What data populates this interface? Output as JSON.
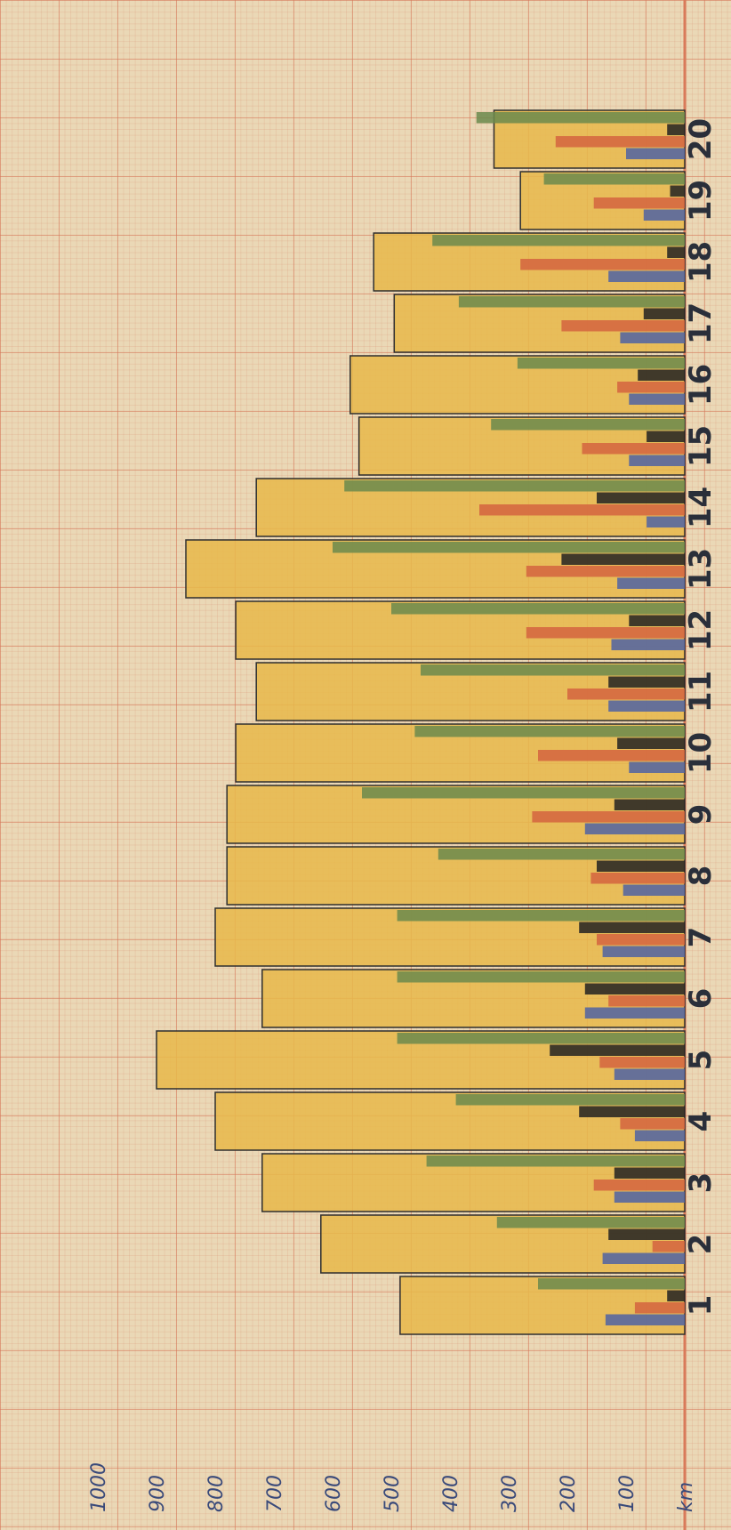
{
  "chart_data": {
    "type": "bar",
    "orientation": "horizontal",
    "x_unit_label": "km",
    "x_ticks": [
      "100",
      "200",
      "300",
      "400",
      "500",
      "600",
      "700",
      "800",
      "900",
      "1000"
    ],
    "xlim": [
      0,
      1000
    ],
    "categories": [
      "1",
      "2",
      "3",
      "4",
      "5",
      "6",
      "7",
      "8",
      "9",
      "10",
      "11",
      "12",
      "13",
      "14",
      "15",
      "16",
      "17",
      "18",
      "19",
      "20"
    ],
    "series": [
      {
        "color": "#e8b94a",
        "values": [
          485,
          620,
          720,
          800,
          900,
          720,
          800,
          780,
          780,
          765,
          730,
          765,
          850,
          730,
          555,
          570,
          495,
          530,
          280,
          325
        ]
      },
      {
        "color": "#6b8a4c",
        "values": [
          250,
          320,
          440,
          390,
          490,
          490,
          490,
          420,
          550,
          460,
          450,
          500,
          600,
          580,
          330,
          285,
          385,
          430,
          240,
          355
        ]
      },
      {
        "color": "#222222",
        "values": [
          30,
          130,
          120,
          180,
          230,
          170,
          180,
          150,
          120,
          115,
          130,
          95,
          210,
          150,
          65,
          80,
          70,
          30,
          25,
          30
        ]
      },
      {
        "color": "#d4643f",
        "values": [
          85,
          55,
          155,
          110,
          145,
          130,
          150,
          160,
          260,
          250,
          200,
          270,
          270,
          350,
          175,
          115,
          210,
          280,
          155,
          220
        ]
      },
      {
        "color": "#4f63a3",
        "values": [
          135,
          140,
          120,
          85,
          120,
          170,
          140,
          105,
          170,
          95,
          130,
          125,
          115,
          65,
          95,
          95,
          110,
          130,
          70,
          100
        ]
      }
    ]
  }
}
